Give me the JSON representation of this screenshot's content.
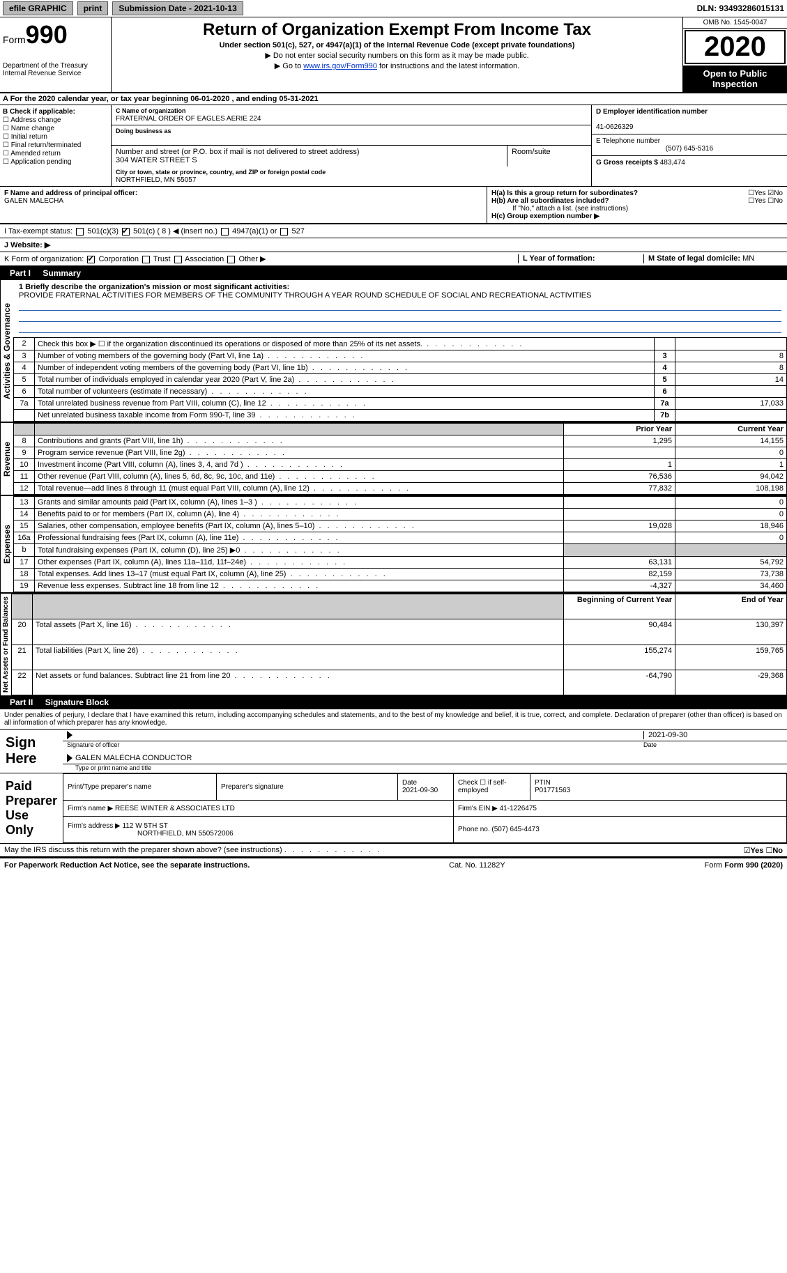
{
  "topbar": {
    "efile": "efile GRAPHIC",
    "print": "print",
    "subdate": "Submission Date - 2021-10-13",
    "dln": "DLN: 93493286015131"
  },
  "header": {
    "form": "Form",
    "num": "990",
    "dept": "Department of the Treasury Internal Revenue Service",
    "title": "Return of Organization Exempt From Income Tax",
    "under": "Under section 501(c), 527, or 4947(a)(1) of the Internal Revenue Code (except private foundations)",
    "note1": "▶ Do not enter social security numbers on this form as it may be made public.",
    "note2_pre": "▶ Go to ",
    "note2_link": "www.irs.gov/Form990",
    "note2_post": " for instructions and the latest information.",
    "omb": "OMB No. 1545-0047",
    "year": "2020",
    "open": "Open to Public Inspection"
  },
  "lineA": "A For the 2020 calendar year, or tax year beginning 06-01-2020    , and ending 05-31-2021",
  "b": {
    "label": "B Check if applicable:",
    "opts": [
      "Address change",
      "Name change",
      "Initial return",
      "Final return/terminated",
      "Amended return",
      "Application pending"
    ]
  },
  "c": {
    "name_lbl": "C Name of organization",
    "name": "FRATERNAL ORDER OF EAGLES AERIE 224",
    "dba_lbl": "Doing business as",
    "dba": "",
    "street_lbl": "Number and street (or P.O. box if mail is not delivered to street address)",
    "street": "304 WATER STREET S",
    "room_lbl": "Room/suite",
    "city_lbl": "City or town, state or province, country, and ZIP or foreign postal code",
    "city": "NORTHFIELD, MN  55057"
  },
  "d": {
    "ein_lbl": "D Employer identification number",
    "ein": "41-0626329",
    "tel_lbl": "E Telephone number",
    "tel": "(507) 645-5316",
    "gross_lbl": "G Gross receipts $",
    "gross": "483,474"
  },
  "f": {
    "lbl": "F Name and address of principal officer:",
    "name": "GALEN MALECHA"
  },
  "h": {
    "a": "H(a)  Is this a group return for subordinates?",
    "b": "H(b)  Are all subordinates included?",
    "b_note": "If \"No,\" attach a list. (see instructions)",
    "c": "H(c)  Group exemption number ▶"
  },
  "yesno": {
    "yes": "Yes",
    "no": "No"
  },
  "i": {
    "lbl": "I    Tax-exempt status:",
    "o1": "501(c)(3)",
    "o2": "501(c) ( 8 ) ◀ (insert no.)",
    "o3": "4947(a)(1) or",
    "o4": "527"
  },
  "j": "J   Website: ▶",
  "k": {
    "lbl": "K Form of organization:",
    "o": [
      "Corporation",
      "Trust",
      "Association",
      "Other ▶"
    ],
    "l_lbl": "L Year of formation:",
    "m_lbl": "M State of legal domicile:",
    "m": "MN"
  },
  "part1": {
    "num": "Part I",
    "title": "Summary"
  },
  "mission_lbl": "1 Briefly describe the organization's mission or most significant activities:",
  "mission": "PROVIDE FRATERNAL ACTIVITIES FOR MEMBERS OF THE COMMUNITY THROUGH A YEAR ROUND SCHEDULE OF SOCIAL AND RECREATIONAL ACTIVITIES",
  "side": {
    "gov": "Activities & Governance",
    "rev": "Revenue",
    "exp": "Expenses",
    "net": "Net Assets or Fund Balances"
  },
  "gov_rows": [
    {
      "n": "2",
      "t": "Check this box ▶ ☐  if the organization discontinued its operations or disposed of more than 25% of its net assets.",
      "l": "",
      "v": ""
    },
    {
      "n": "3",
      "t": "Number of voting members of the governing body (Part VI, line 1a)",
      "l": "3",
      "v": "8"
    },
    {
      "n": "4",
      "t": "Number of independent voting members of the governing body (Part VI, line 1b)",
      "l": "4",
      "v": "8"
    },
    {
      "n": "5",
      "t": "Total number of individuals employed in calendar year 2020 (Part V, line 2a)",
      "l": "5",
      "v": "14"
    },
    {
      "n": "6",
      "t": "Total number of volunteers (estimate if necessary)",
      "l": "6",
      "v": ""
    },
    {
      "n": "7a",
      "t": "Total unrelated business revenue from Part VIII, column (C), line 12",
      "l": "7a",
      "v": "17,033"
    },
    {
      "n": "",
      "t": "Net unrelated business taxable income from Form 990-T, line 39",
      "l": "7b",
      "v": ""
    }
  ],
  "cols": {
    "py": "Prior Year",
    "cy": "Current Year",
    "bcy": "Beginning of Current Year",
    "eoy": "End of Year"
  },
  "rev_rows": [
    {
      "n": "8",
      "t": "Contributions and grants (Part VIII, line 1h)",
      "py": "1,295",
      "cy": "14,155"
    },
    {
      "n": "9",
      "t": "Program service revenue (Part VIII, line 2g)",
      "py": "",
      "cy": "0"
    },
    {
      "n": "10",
      "t": "Investment income (Part VIII, column (A), lines 3, 4, and 7d )",
      "py": "1",
      "cy": "1"
    },
    {
      "n": "11",
      "t": "Other revenue (Part VIII, column (A), lines 5, 6d, 8c, 9c, 10c, and 11e)",
      "py": "76,536",
      "cy": "94,042"
    },
    {
      "n": "12",
      "t": "Total revenue—add lines 8 through 11 (must equal Part VIII, column (A), line 12)",
      "py": "77,832",
      "cy": "108,198"
    }
  ],
  "exp_rows": [
    {
      "n": "13",
      "t": "Grants and similar amounts paid (Part IX, column (A), lines 1–3 )",
      "py": "",
      "cy": "0"
    },
    {
      "n": "14",
      "t": "Benefits paid to or for members (Part IX, column (A), line 4)",
      "py": "",
      "cy": "0"
    },
    {
      "n": "15",
      "t": "Salaries, other compensation, employee benefits (Part IX, column (A), lines 5–10)",
      "py": "19,028",
      "cy": "18,946"
    },
    {
      "n": "16a",
      "t": "Professional fundraising fees (Part IX, column (A), line 11e)",
      "py": "",
      "cy": "0"
    },
    {
      "n": "b",
      "t": "Total fundraising expenses (Part IX, column (D), line 25) ▶0",
      "py": "shade",
      "cy": "shade"
    },
    {
      "n": "17",
      "t": "Other expenses (Part IX, column (A), lines 11a–11d, 11f–24e)",
      "py": "63,131",
      "cy": "54,792"
    },
    {
      "n": "18",
      "t": "Total expenses. Add lines 13–17 (must equal Part IX, column (A), line 25)",
      "py": "82,159",
      "cy": "73,738"
    },
    {
      "n": "19",
      "t": "Revenue less expenses. Subtract line 18 from line 12",
      "py": "-4,327",
      "cy": "34,460"
    }
  ],
  "net_rows": [
    {
      "n": "20",
      "t": "Total assets (Part X, line 16)",
      "py": "90,484",
      "cy": "130,397"
    },
    {
      "n": "21",
      "t": "Total liabilities (Part X, line 26)",
      "py": "155,274",
      "cy": "159,765"
    },
    {
      "n": "22",
      "t": "Net assets or fund balances. Subtract line 21 from line 20",
      "py": "-64,790",
      "cy": "-29,368"
    }
  ],
  "part2": {
    "num": "Part II",
    "title": "Signature Block"
  },
  "sig_decl": "Under penalties of perjury, I declare that I have examined this return, including accompanying schedules and statements, and to the best of my knowledge and belief, it is true, correct, and complete. Declaration of preparer (other than officer) is based on all information of which preparer has any knowledge.",
  "sign": {
    "here": "Sign Here",
    "date": "2021-09-30",
    "sig_lbl": "Signature of officer",
    "date_lbl": "Date",
    "name": "GALEN MALECHA  CONDUCTOR",
    "name_lbl": "Type or print name and title"
  },
  "paid": {
    "title": "Paid Preparer Use Only",
    "h1": "Print/Type preparer's name",
    "h2": "Preparer's signature",
    "h3": "Date",
    "h3v": "2021-09-30",
    "h4": "Check ☐ if self-employed",
    "h5": "PTIN",
    "h5v": "P01771563",
    "firm_lbl": "Firm's name   ▶",
    "firm": "REESE WINTER & ASSOCIATES LTD",
    "ein_lbl": "Firm's EIN ▶",
    "ein": "41-1226475",
    "addr_lbl": "Firm's address ▶",
    "addr": "112 W 5TH ST",
    "addr2": "NORTHFIELD, MN  550572006",
    "phone_lbl": "Phone no.",
    "phone": "(507) 645-4473"
  },
  "discuss": "May the IRS discuss this return with the preparer shown above? (see instructions)",
  "footer": {
    "pra": "For Paperwork Reduction Act Notice, see the separate instructions.",
    "cat": "Cat. No. 11282Y",
    "form": "Form 990 (2020)"
  }
}
